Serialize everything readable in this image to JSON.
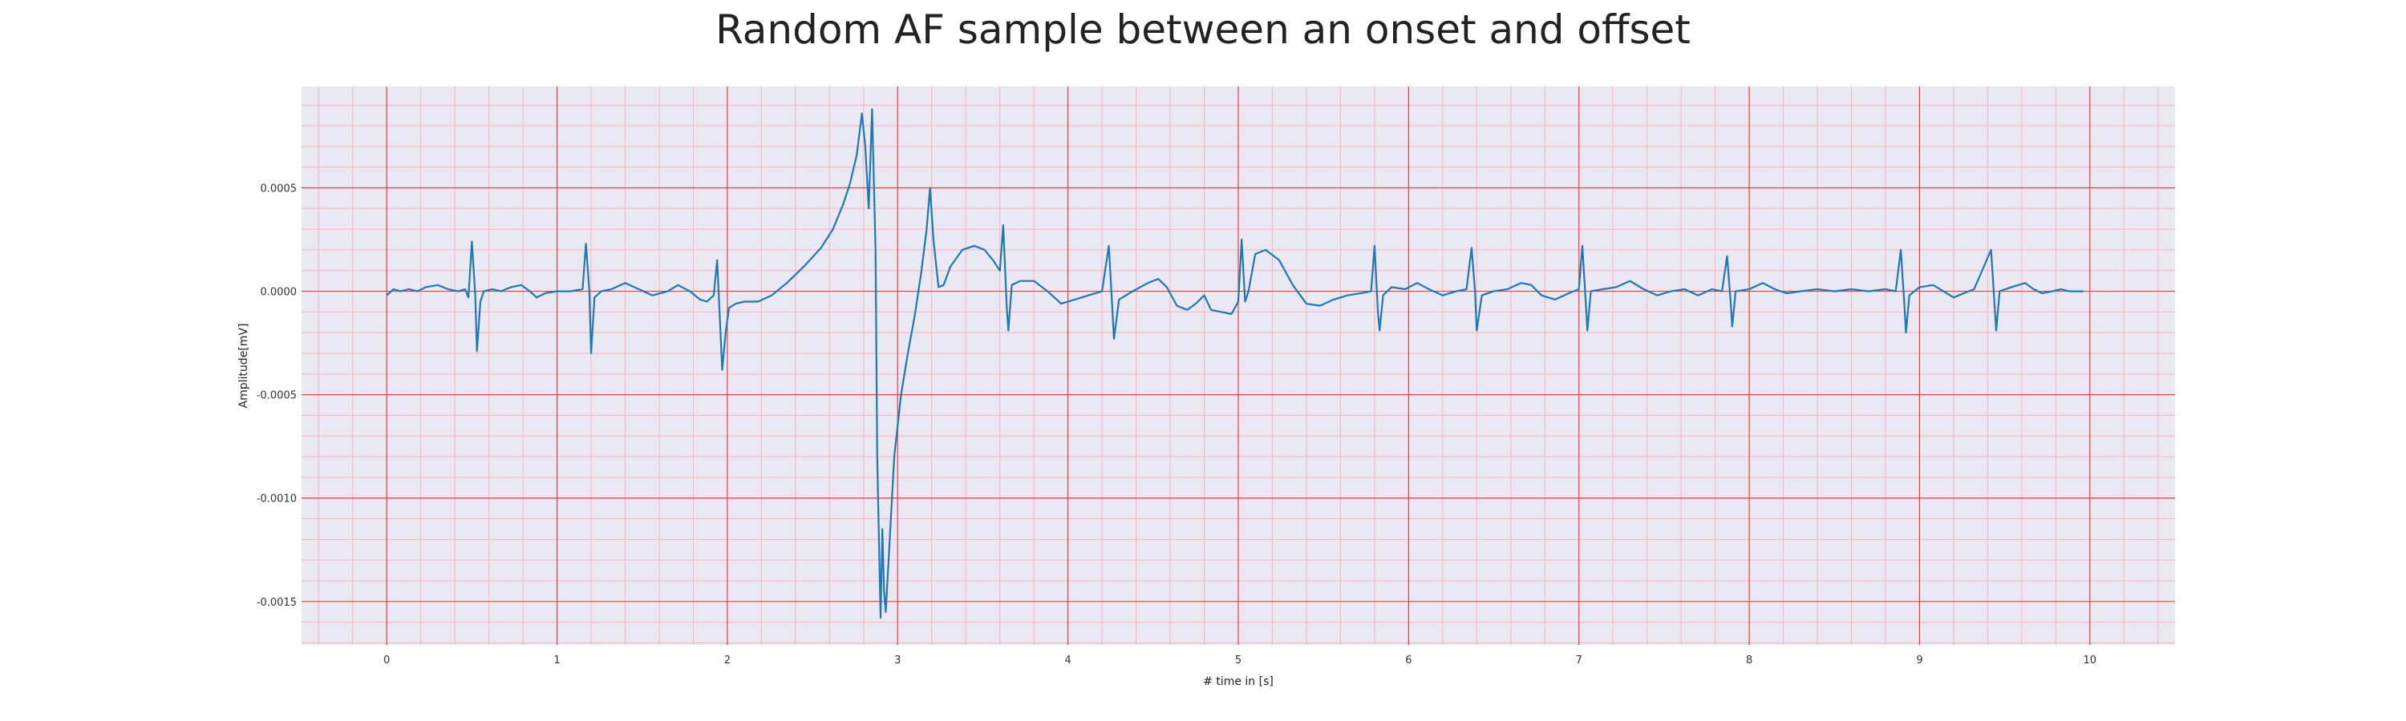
{
  "chart_data": {
    "type": "line",
    "title": "Random AF sample between an onset and offset",
    "xlabel": "# time in [s]",
    "ylabel": "Amplitude[mV]",
    "xlim": [
      -0.5,
      10.5
    ],
    "ylim": [
      -0.00171,
      0.00099
    ],
    "xticks": [
      0,
      1,
      2,
      3,
      4,
      5,
      6,
      7,
      8,
      9,
      10
    ],
    "xtick_labels": [
      "0",
      "1",
      "2",
      "3",
      "4",
      "5",
      "6",
      "7",
      "8",
      "9",
      "10"
    ],
    "yticks": [
      0.0005,
      0.0,
      -0.0005,
      -0.001,
      -0.0015
    ],
    "ytick_labels": [
      "0.0005",
      "0.0000",
      "-0.0005",
      "-0.0010",
      "-0.0015"
    ],
    "grid": true,
    "minor_grid": true,
    "colors": {
      "line": "#1f77b4",
      "plot_background": "#eae8f2",
      "major_grid": "#ee3b3b",
      "minor_grid": "#f3b4bc"
    },
    "series": [
      {
        "points": [
          [
            0.0,
            -2e-05
          ],
          [
            0.04,
            1e-05
          ],
          [
            0.08,
            0.0
          ],
          [
            0.13,
            1e-05
          ],
          [
            0.18,
            0.0
          ],
          [
            0.23,
            2e-05
          ],
          [
            0.3,
            3e-05
          ],
          [
            0.36,
            1e-05
          ],
          [
            0.42,
            0.0
          ],
          [
            0.46,
            1e-05
          ],
          [
            0.48,
            -3e-05
          ],
          [
            0.5,
            0.00024
          ],
          [
            0.52,
            -2e-05
          ],
          [
            0.53,
            -0.00029
          ],
          [
            0.55,
            -5e-05
          ],
          [
            0.57,
            0.0
          ],
          [
            0.62,
            1e-05
          ],
          [
            0.67,
            0.0
          ],
          [
            0.73,
            2e-05
          ],
          [
            0.79,
            3e-05
          ],
          [
            0.84,
            0.0
          ],
          [
            0.88,
            -3e-05
          ],
          [
            0.93,
            -1e-05
          ],
          [
            1.0,
            0.0
          ],
          [
            1.08,
            0.0
          ],
          [
            1.15,
            1e-05
          ],
          [
            1.17,
            0.00023
          ],
          [
            1.19,
            0.0
          ],
          [
            1.2,
            -0.0003
          ],
          [
            1.22,
            -3e-05
          ],
          [
            1.26,
            0.0
          ],
          [
            1.32,
            1e-05
          ],
          [
            1.4,
            4e-05
          ],
          [
            1.48,
            1e-05
          ],
          [
            1.56,
            -2e-05
          ],
          [
            1.65,
            0.0
          ],
          [
            1.71,
            3e-05
          ],
          [
            1.78,
            0.0
          ],
          [
            1.84,
            -4e-05
          ],
          [
            1.88,
            -5e-05
          ],
          [
            1.92,
            -2e-05
          ],
          [
            1.94,
            0.00015
          ],
          [
            1.96,
            -0.0002
          ],
          [
            1.97,
            -0.00038
          ],
          [
            1.99,
            -0.0002
          ],
          [
            2.01,
            -8e-05
          ],
          [
            2.05,
            -6e-05
          ],
          [
            2.1,
            -5e-05
          ],
          [
            2.18,
            -5e-05
          ],
          [
            2.26,
            -2e-05
          ],
          [
            2.35,
            4e-05
          ],
          [
            2.45,
            0.00012
          ],
          [
            2.55,
            0.00021
          ],
          [
            2.62,
            0.0003
          ],
          [
            2.68,
            0.00042
          ],
          [
            2.72,
            0.00052
          ],
          [
            2.76,
            0.00066
          ],
          [
            2.79,
            0.00086
          ],
          [
            2.81,
            0.0007
          ],
          [
            2.83,
            0.0004
          ],
          [
            2.85,
            0.00088
          ],
          [
            2.87,
            0.0002
          ],
          [
            2.88,
            -0.0008
          ],
          [
            2.9,
            -0.00158
          ],
          [
            2.91,
            -0.00115
          ],
          [
            2.92,
            -0.00145
          ],
          [
            2.93,
            -0.00155
          ],
          [
            2.95,
            -0.00125
          ],
          [
            2.98,
            -0.0008
          ],
          [
            3.02,
            -0.0005
          ],
          [
            3.06,
            -0.0003
          ],
          [
            3.1,
            -0.00012
          ],
          [
            3.14,
            0.0001
          ],
          [
            3.17,
            0.0003
          ],
          [
            3.19,
            0.0005
          ],
          [
            3.21,
            0.00025
          ],
          [
            3.24,
            2e-05
          ],
          [
            3.27,
            3e-05
          ],
          [
            3.31,
            0.00012
          ],
          [
            3.38,
            0.0002
          ],
          [
            3.45,
            0.00022
          ],
          [
            3.51,
            0.0002
          ],
          [
            3.56,
            0.00015
          ],
          [
            3.6,
            0.0001
          ],
          [
            3.62,
            0.00032
          ],
          [
            3.64,
            -7e-05
          ],
          [
            3.65,
            -0.00019
          ],
          [
            3.67,
            3e-05
          ],
          [
            3.72,
            5e-05
          ],
          [
            3.8,
            5e-05
          ],
          [
            3.88,
            0.0
          ],
          [
            3.96,
            -6e-05
          ],
          [
            4.04,
            -4e-05
          ],
          [
            4.12,
            -2e-05
          ],
          [
            4.2,
            0.0
          ],
          [
            4.24,
            0.00022
          ],
          [
            4.26,
            -8e-05
          ],
          [
            4.27,
            -0.00023
          ],
          [
            4.3,
            -4e-05
          ],
          [
            4.38,
            0.0
          ],
          [
            4.47,
            4e-05
          ],
          [
            4.53,
            6e-05
          ],
          [
            4.58,
            2e-05
          ],
          [
            4.64,
            -7e-05
          ],
          [
            4.7,
            -9e-05
          ],
          [
            4.75,
            -6e-05
          ],
          [
            4.8,
            -2e-05
          ],
          [
            4.84,
            -9e-05
          ],
          [
            4.9,
            -0.0001
          ],
          [
            4.96,
            -0.00011
          ],
          [
            5.0,
            -5e-05
          ],
          [
            5.02,
            0.00025
          ],
          [
            5.04,
            -5e-05
          ],
          [
            5.06,
            0.0
          ],
          [
            5.1,
            0.00018
          ],
          [
            5.16,
            0.0002
          ],
          [
            5.24,
            0.00015
          ],
          [
            5.32,
            3e-05
          ],
          [
            5.4,
            -6e-05
          ],
          [
            5.48,
            -7e-05
          ],
          [
            5.56,
            -4e-05
          ],
          [
            5.64,
            -2e-05
          ],
          [
            5.72,
            -1e-05
          ],
          [
            5.78,
            0.0
          ],
          [
            5.8,
            0.00022
          ],
          [
            5.82,
            -0.0001
          ],
          [
            5.83,
            -0.00019
          ],
          [
            5.85,
            -2e-05
          ],
          [
            5.9,
            2e-05
          ],
          [
            5.98,
            1e-05
          ],
          [
            6.05,
            4e-05
          ],
          [
            6.12,
            1e-05
          ],
          [
            6.2,
            -2e-05
          ],
          [
            6.28,
            0.0
          ],
          [
            6.34,
            1e-05
          ],
          [
            6.37,
            0.00021
          ],
          [
            6.39,
            0.0
          ],
          [
            6.4,
            -0.00019
          ],
          [
            6.43,
            -2e-05
          ],
          [
            6.5,
            0.0
          ],
          [
            6.58,
            1e-05
          ],
          [
            6.66,
            4e-05
          ],
          [
            6.72,
            3e-05
          ],
          [
            6.78,
            -2e-05
          ],
          [
            6.86,
            -4e-05
          ],
          [
            6.94,
            -1e-05
          ],
          [
            7.0,
            1e-05
          ],
          [
            7.02,
            0.00022
          ],
          [
            7.04,
            -5e-05
          ],
          [
            7.05,
            -0.00019
          ],
          [
            7.07,
            0.0
          ],
          [
            7.14,
            1e-05
          ],
          [
            7.22,
            2e-05
          ],
          [
            7.3,
            5e-05
          ],
          [
            7.38,
            1e-05
          ],
          [
            7.46,
            -2e-05
          ],
          [
            7.54,
            0.0
          ],
          [
            7.62,
            1e-05
          ],
          [
            7.7,
            -2e-05
          ],
          [
            7.78,
            1e-05
          ],
          [
            7.84,
            0.0
          ],
          [
            7.87,
            0.00017
          ],
          [
            7.89,
            -4e-05
          ],
          [
            7.9,
            -0.00017
          ],
          [
            7.92,
            0.0
          ],
          [
            8.0,
            1e-05
          ],
          [
            8.08,
            4e-05
          ],
          [
            8.15,
            1e-05
          ],
          [
            8.22,
            -1e-05
          ],
          [
            8.3,
            0.0
          ],
          [
            8.4,
            1e-05
          ],
          [
            8.5,
            0.0
          ],
          [
            8.6,
            1e-05
          ],
          [
            8.7,
            0.0
          ],
          [
            8.8,
            1e-05
          ],
          [
            8.86,
            0.0
          ],
          [
            8.89,
            0.0002
          ],
          [
            8.91,
            -5e-05
          ],
          [
            8.92,
            -0.0002
          ],
          [
            8.94,
            -2e-05
          ],
          [
            9.0,
            2e-05
          ],
          [
            9.08,
            3e-05
          ],
          [
            9.14,
            0.0
          ],
          [
            9.2,
            -3e-05
          ],
          [
            9.26,
            -1e-05
          ],
          [
            9.32,
            1e-05
          ],
          [
            9.42,
            0.0002
          ],
          [
            9.44,
            -6e-05
          ],
          [
            9.45,
            -0.00019
          ],
          [
            9.47,
            0.0
          ],
          [
            9.54,
            2e-05
          ],
          [
            9.62,
            4e-05
          ],
          [
            9.67,
            1e-05
          ],
          [
            9.72,
            -1e-05
          ],
          [
            9.78,
            0.0
          ],
          [
            9.83,
            1e-05
          ],
          [
            9.88,
            0.0
          ],
          [
            9.93,
            0.0
          ],
          [
            9.96,
            0.0
          ]
        ]
      }
    ]
  }
}
